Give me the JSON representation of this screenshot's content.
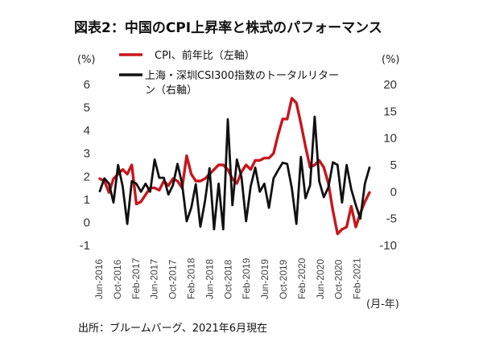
{
  "chart_data": {
    "type": "line",
    "title": "図表2：中国のCPI上昇率と株式のパフォーマンス",
    "left_unit": "(%)",
    "right_unit": "(%)",
    "x_unit": "(月-年)",
    "source": "出所：ブルームバーグ、2021年6月現在",
    "left_axis": {
      "ticks": [
        6,
        5,
        4,
        3,
        2,
        1,
        0,
        -1
      ],
      "ylim": [
        -1,
        6
      ]
    },
    "right_axis": {
      "ticks": [
        20,
        15,
        10,
        5,
        0,
        -5,
        -10
      ],
      "ylim": [
        -10,
        20
      ]
    },
    "x_tick_labels": [
      "Jun-2016",
      "Oct-2016",
      "Feb-2017",
      "Jun-2017",
      "Oct-2017",
      "Feb-2018",
      "Jun-2018",
      "Oct-2018",
      "Feb-2019",
      "Jun-2019",
      "Oct-2019",
      "Feb-2020",
      "Jun-2020",
      "Oct-2020",
      "Feb-2021"
    ],
    "series": [
      {
        "name": "CPI、前年比（左軸）",
        "axis": "left",
        "color": "#c8161d",
        "values": [
          1.9,
          1.8,
          1.3,
          1.9,
          2.1,
          2.3,
          2.1,
          2.5,
          0.8,
          0.9,
          1.2,
          1.5,
          1.5,
          1.4,
          1.8,
          1.6,
          1.9,
          1.8,
          1.5,
          2.9,
          2.1,
          1.8,
          1.8,
          1.9,
          2.1,
          2.3,
          2.5,
          2.5,
          2.3,
          1.9,
          1.7,
          2.2,
          2.5,
          2.3,
          2.7,
          2.7,
          2.8,
          2.8,
          3.0,
          3.8,
          4.5,
          4.5,
          5.4,
          5.2,
          4.3,
          3.3,
          2.4,
          2.5,
          2.7,
          2.4,
          1.7,
          0.5,
          -0.5,
          -0.3,
          -0.2,
          0.7,
          -0.2,
          0.4,
          0.9,
          1.3
        ]
      },
      {
        "name": "上海・深圳CSI300指数のトータルリターン（右軸）",
        "axis": "right",
        "color": "#111111",
        "values": [
          0.1,
          2.5,
          1.5,
          -2.0,
          5.0,
          1.0,
          -6.0,
          2.0,
          1.5,
          0.0,
          1.5,
          0.0,
          6.0,
          2.6,
          2.6,
          -0.5,
          1.2,
          5.2,
          1.5,
          -5.5,
          -3.0,
          1.4,
          -6.5,
          -1.8,
          4.4,
          -7.0,
          1.5,
          -7.0,
          13.5,
          -2.5,
          6.0,
          2.7,
          -5.5,
          1.0,
          4.5,
          0.0,
          1.5,
          -3.0,
          2.5,
          4.0,
          5.4,
          5.2,
          0.7,
          -6.0,
          6.5,
          -1.2,
          1.2,
          14.0,
          2.0,
          -1.0,
          0.8,
          5.5,
          5.0,
          -2.0,
          5.0,
          0.5,
          -2.5,
          -5.0,
          1.5,
          4.5
        ]
      }
    ]
  }
}
